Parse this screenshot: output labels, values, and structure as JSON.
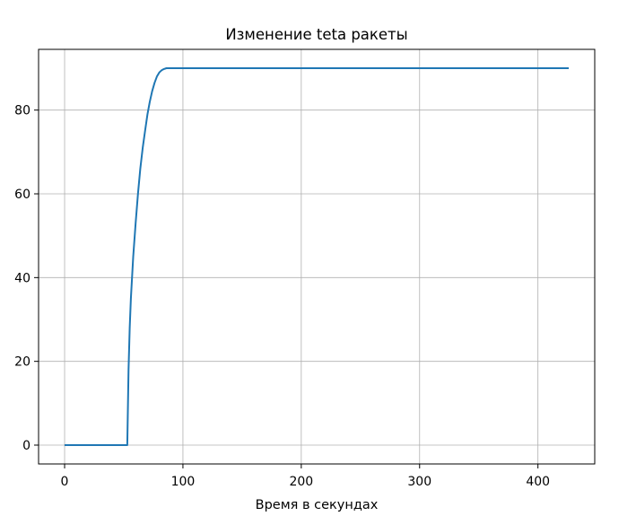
{
  "chart_data": {
    "type": "line",
    "title": "Изменение teta ракеты",
    "xlabel": "Время в секундах",
    "ylabel": "",
    "xlim": [
      -22,
      448
    ],
    "ylim": [
      -4.5,
      94.5
    ],
    "xticks": [
      0,
      100,
      200,
      300,
      400
    ],
    "yticks": [
      0,
      20,
      40,
      60,
      80
    ],
    "grid": true,
    "series": [
      {
        "color": "#1f77b4",
        "x": [
          0,
          53,
          54,
          55,
          56,
          58,
          60,
          62,
          64,
          66,
          68,
          70,
          72,
          74,
          76,
          78,
          80,
          82,
          84,
          86,
          88,
          90,
          426
        ],
        "y": [
          0,
          0,
          18,
          28,
          35,
          45,
          53,
          60,
          66,
          71,
          75,
          79,
          82,
          84.5,
          86.5,
          88,
          89,
          89.5,
          89.8,
          90,
          90,
          90,
          90
        ]
      }
    ]
  }
}
